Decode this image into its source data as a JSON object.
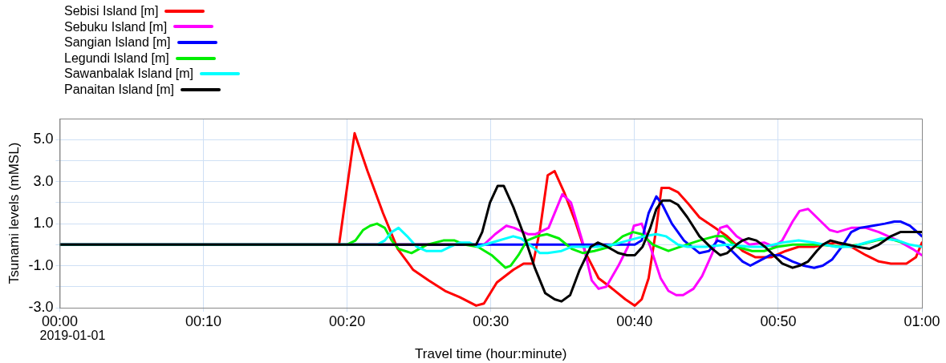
{
  "chart_data": {
    "type": "line",
    "xlabel": "Travel time (hour:minute)",
    "ylabel": "Tsunami levels (mMSL)",
    "xlim": [
      0,
      1
    ],
    "ylim": [
      -3,
      6
    ],
    "xticks": [
      {
        "value": 0,
        "label": "00:00"
      },
      {
        "value": 0.16667,
        "label": "00:10"
      },
      {
        "value": 0.33333,
        "label": "00:20"
      },
      {
        "value": 0.5,
        "label": "00:30"
      },
      {
        "value": 0.66667,
        "label": "00:40"
      },
      {
        "value": 0.83333,
        "label": "00:50"
      },
      {
        "value": 1,
        "label": "01:00"
      }
    ],
    "yticks": [
      {
        "value": -3,
        "label": "-3.0"
      },
      {
        "value": -2,
        "label": null
      },
      {
        "value": -1,
        "label": "-1.0"
      },
      {
        "value": 0,
        "label": null
      },
      {
        "value": 1,
        "label": "1.0"
      },
      {
        "value": 2,
        "label": null
      },
      {
        "value": 3,
        "label": "3.0"
      },
      {
        "value": 4,
        "label": null
      },
      {
        "value": 5,
        "label": "5.0"
      }
    ],
    "grid": true,
    "legend": "top left",
    "line_style": "solid",
    "annotations": [
      "2019-01-01"
    ],
    "series": [
      {
        "name": "Sebisi Island [m]",
        "color": "#ff0000",
        "x": [
          0,
          0.324,
          0.342,
          0.357,
          0.375,
          0.392,
          0.41,
          0.428,
          0.447,
          0.464,
          0.483,
          0.492,
          0.507,
          0.526,
          0.538,
          0.549,
          0.557,
          0.566,
          0.574,
          0.585,
          0.598,
          0.61,
          0.625,
          0.638,
          0.656,
          0.667,
          0.675,
          0.683,
          0.692,
          0.698,
          0.707,
          0.717,
          0.728,
          0.742,
          0.76,
          0.774,
          0.792,
          0.807,
          0.825,
          0.842,
          0.857,
          0.875,
          0.9,
          0.918,
          0.935,
          0.95,
          0.964,
          0.982,
          0.993,
          1
        ],
        "values": [
          0,
          0,
          5.3,
          3.5,
          1.5,
          -0.2,
          -1.2,
          -1.7,
          -2.2,
          -2.5,
          -2.9,
          -2.8,
          -1.8,
          -1.2,
          -0.9,
          -0.9,
          0.7,
          3.3,
          3.5,
          2.5,
          1.1,
          -0.4,
          -1.6,
          -2.0,
          -2.6,
          -2.9,
          -2.6,
          -1.6,
          0.8,
          2.7,
          2.7,
          2.5,
          2.0,
          1.3,
          0.8,
          0.4,
          -0.3,
          -0.6,
          -0.6,
          -0.3,
          -0.1,
          -0.1,
          0.1,
          -0.1,
          -0.5,
          -0.8,
          -0.9,
          -0.9,
          -0.6,
          0.1
        ]
      },
      {
        "name": "Sebuku Island [m]",
        "color": "#ff00ff",
        "x": [
          0,
          0.492,
          0.505,
          0.518,
          0.527,
          0.543,
          0.552,
          0.567,
          0.575,
          0.583,
          0.593,
          0.606,
          0.617,
          0.625,
          0.634,
          0.648,
          0.659,
          0.666,
          0.675,
          0.685,
          0.697,
          0.706,
          0.715,
          0.723,
          0.735,
          0.745,
          0.757,
          0.766,
          0.774,
          0.785,
          0.8,
          0.817,
          0.828,
          0.838,
          0.85,
          0.858,
          0.868,
          0.878,
          0.893,
          0.902,
          0.918,
          0.935,
          0.95,
          0.972,
          0.989,
          1
        ],
        "values": [
          0,
          0,
          0.5,
          0.9,
          0.8,
          0.5,
          0.5,
          0.8,
          1.6,
          2.4,
          2.0,
          0.2,
          -1.7,
          -2.1,
          -2.0,
          -1.0,
          -0.1,
          0.9,
          1.0,
          -0.1,
          -1.6,
          -2.2,
          -2.4,
          -2.4,
          -2.1,
          -1.5,
          -0.4,
          0.8,
          0.9,
          0.4,
          0,
          0.1,
          -0.1,
          0.2,
          1.1,
          1.6,
          1.7,
          1.3,
          0.7,
          0.6,
          0.8,
          0.8,
          0.6,
          0.2,
          -0.2,
          -0.5
        ]
      },
      {
        "name": "Sangian Island [m]",
        "color": "#0000ff",
        "x": [
          0,
          0.659,
          0.667,
          0.675,
          0.683,
          0.692,
          0.699,
          0.71,
          0.724,
          0.742,
          0.753,
          0.763,
          0.77,
          0.782,
          0.792,
          0.801,
          0.81,
          0.824,
          0.835,
          0.85,
          0.863,
          0.875,
          0.885,
          0.896,
          0.907,
          0.918,
          0.928,
          0.943,
          0.957,
          0.968,
          0.975,
          0.986,
          1
        ],
        "values": [
          0,
          0,
          0,
          0.2,
          1.5,
          2.3,
          1.9,
          1.0,
          0.2,
          -0.4,
          -0.3,
          0.2,
          0.1,
          -0.4,
          -0.8,
          -1.0,
          -0.8,
          -0.5,
          -0.5,
          -0.8,
          -1.0,
          -1.1,
          -1.0,
          -0.7,
          -0.1,
          0.6,
          0.8,
          0.9,
          1.0,
          1.1,
          1.1,
          0.9,
          0.4
        ]
      },
      {
        "name": "Legundi Island [m]",
        "color": "#00ee00",
        "x": [
          0,
          0.333,
          0.343,
          0.352,
          0.36,
          0.368,
          0.377,
          0.385,
          0.393,
          0.408,
          0.426,
          0.445,
          0.458,
          0.47,
          0.485,
          0.501,
          0.517,
          0.523,
          0.532,
          0.542,
          0.554,
          0.565,
          0.579,
          0.594,
          0.607,
          0.62,
          0.638,
          0.653,
          0.665,
          0.675,
          0.688,
          0.706,
          0.72,
          0.742,
          0.76,
          0.77,
          0.785,
          0.803,
          0.817,
          0.832,
          0.85,
          0.882,
          0.907,
          0.928,
          0.947,
          0.961,
          0.978
        ],
        "values": [
          0,
          0,
          0.2,
          0.7,
          0.9,
          1.0,
          0.8,
          0.2,
          -0.2,
          -0.4,
          0,
          0.2,
          0.2,
          0,
          -0.1,
          -0.5,
          -1.1,
          -1.0,
          -0.5,
          0.2,
          0.4,
          0.5,
          0.3,
          -0.2,
          -0.4,
          -0.3,
          -0.1,
          0.4,
          0.6,
          0.5,
          0,
          -0.3,
          -0.1,
          0.2,
          0.4,
          0.4,
          -0.1,
          -0.3,
          -0.3,
          -0.1,
          0,
          0,
          -0.1,
          0,
          0.2,
          0.3,
          0.1
        ]
      },
      {
        "name": "Sawanbalak Island [m]",
        "color": "#00ffff",
        "x": [
          0,
          0.368,
          0.377,
          0.385,
          0.393,
          0.403,
          0.414,
          0.425,
          0.435,
          0.443,
          0.453,
          0.464,
          0.475,
          0.485,
          0.501,
          0.526,
          0.535,
          0.548,
          0.557,
          0.566,
          0.582,
          0.594,
          0.606,
          0.623,
          0.642,
          0.659,
          0.678,
          0.692,
          0.703,
          0.717,
          0.728,
          0.749,
          0.774,
          0.8,
          0.817,
          0.838,
          0.857,
          0.875,
          0.9,
          0.918,
          0.935,
          0.953,
          0.972,
          0.986,
          1
        ],
        "values": [
          0,
          0,
          0.2,
          0.6,
          0.8,
          0.4,
          -0.1,
          -0.3,
          -0.3,
          -0.3,
          -0.1,
          0.1,
          0.1,
          -0.1,
          0.1,
          0.4,
          0.3,
          -0.1,
          -0.4,
          -0.4,
          -0.3,
          -0.1,
          -0.1,
          -0.1,
          0,
          0.2,
          0.4,
          0.5,
          0.4,
          0,
          -0.1,
          -0.1,
          0,
          -0.1,
          -0.1,
          0.1,
          0.2,
          0.1,
          -0.1,
          -0.1,
          0.1,
          0.3,
          0.2,
          0,
          -0.1
        ]
      },
      {
        "name": "Panaitan Island [m]",
        "color": "#000000",
        "x": [
          0,
          0.483,
          0.49,
          0.499,
          0.508,
          0.515,
          0.526,
          0.538,
          0.551,
          0.563,
          0.574,
          0.582,
          0.592,
          0.603,
          0.616,
          0.624,
          0.635,
          0.648,
          0.658,
          0.667,
          0.676,
          0.685,
          0.692,
          0.699,
          0.708,
          0.717,
          0.728,
          0.742,
          0.757,
          0.766,
          0.774,
          0.785,
          0.792,
          0.799,
          0.808,
          0.818,
          0.828,
          0.838,
          0.85,
          0.858,
          0.868,
          0.878,
          0.885,
          0.894,
          0.903,
          0.914,
          0.925,
          0.939,
          0.95,
          0.964,
          0.975,
          0.986,
          1
        ],
        "values": [
          0,
          0,
          0.6,
          2.0,
          2.8,
          2.8,
          1.8,
          0.5,
          -1.1,
          -2.3,
          -2.6,
          -2.7,
          -2.4,
          -1.2,
          -0.1,
          0.1,
          -0.1,
          -0.4,
          -0.5,
          -0.5,
          -0.1,
          0.8,
          1.7,
          2.1,
          2.1,
          1.9,
          1.3,
          0.4,
          -0.2,
          -0.5,
          -0.4,
          0,
          0.2,
          0.3,
          0.2,
          -0.1,
          -0.5,
          -0.9,
          -1.1,
          -1.0,
          -0.8,
          -0.3,
          0,
          0.2,
          0.1,
          0,
          -0.1,
          -0.2,
          0,
          0.4,
          0.6,
          0.6,
          0.6
        ]
      }
    ]
  }
}
